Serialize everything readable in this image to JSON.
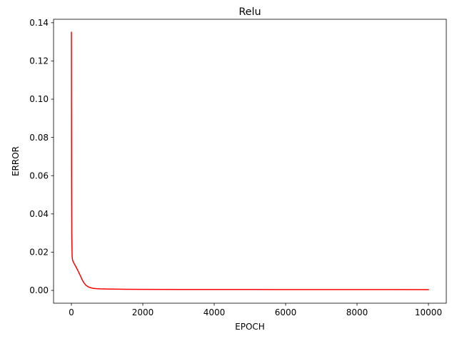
{
  "chart_data": {
    "type": "line",
    "title": "Relu",
    "xlabel": "EPOCH",
    "ylabel": "ERROR",
    "xlim": [
      -500,
      10500
    ],
    "ylim": [
      -0.0067,
      0.1418
    ],
    "x_ticks": [
      0,
      2000,
      4000,
      6000,
      8000,
      10000
    ],
    "x_tick_labels": [
      "0",
      "2000",
      "4000",
      "6000",
      "8000",
      "10000"
    ],
    "y_ticks": [
      0.0,
      0.02,
      0.04,
      0.06,
      0.08,
      0.1,
      0.12,
      0.14
    ],
    "y_tick_labels": [
      "0.00",
      "0.02",
      "0.04",
      "0.06",
      "0.08",
      "0.10",
      "0.12",
      "0.14"
    ],
    "grid": false,
    "series": [
      {
        "color": "#ff0000",
        "x": [
          0,
          5,
          10,
          20,
          30,
          40,
          50,
          70,
          100,
          150,
          200,
          250,
          300,
          350,
          400,
          450,
          500,
          600,
          700,
          800,
          1000,
          1200,
          1500,
          2000,
          3000,
          4000,
          5000,
          6000,
          7000,
          8000,
          9000,
          10000
        ],
        "y": [
          0.135,
          0.06,
          0.03,
          0.018,
          0.016,
          0.0155,
          0.015,
          0.0143,
          0.0132,
          0.0115,
          0.0096,
          0.0077,
          0.0056,
          0.004,
          0.0028,
          0.0021,
          0.0016,
          0.0011,
          0.0009,
          0.0008,
          0.0007,
          0.00065,
          0.0006,
          0.00055,
          0.0005,
          0.00048,
          0.00046,
          0.00045,
          0.00044,
          0.00043,
          0.00042,
          0.0004
        ]
      }
    ]
  }
}
